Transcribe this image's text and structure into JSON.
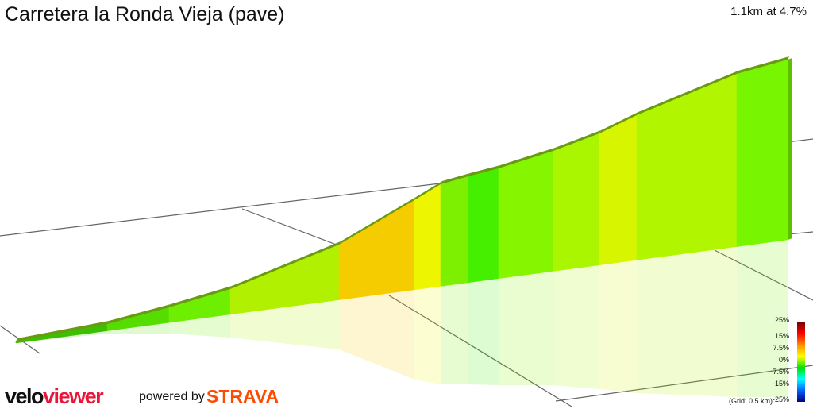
{
  "title": "Carretera la Ronda Vieja (pave)",
  "summary": "1.1km at 4.7%",
  "legend": {
    "labels": [
      "25%",
      "15%",
      "7.5%",
      "0%",
      "-7.5%",
      "-15%",
      "-25%"
    ],
    "grid": "(Grid: 0.5 km)"
  },
  "branding": {
    "logo_part1": "velo",
    "logo_part2": "viewer",
    "powered_by": "powered by",
    "strava": "STRAVA"
  },
  "segment_colors": [
    "#3cbf00",
    "#55dd00",
    "#6eee00",
    "#b0f000",
    "#f5cc00",
    "#eef500",
    "#7cf000",
    "#46ee00",
    "#86f500",
    "#aaf500",
    "#d8f500",
    "#b2f500",
    "#78f500"
  ]
}
